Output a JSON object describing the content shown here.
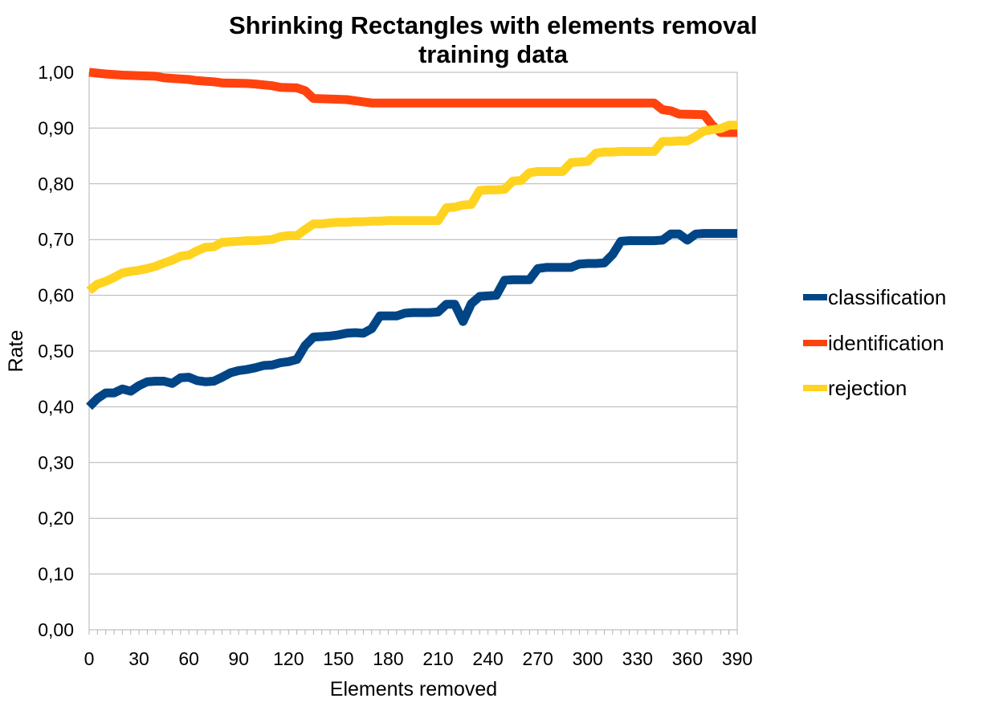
{
  "chart_data": {
    "type": "line",
    "title_lines": [
      "Shrinking Rectangles with elements removal",
      "training data"
    ],
    "xlabel": "Elements removed",
    "ylabel": "Rate",
    "xlim": [
      0,
      390
    ],
    "ylim": [
      0,
      1
    ],
    "x_ticks": [
      "0",
      "30",
      "60",
      "90",
      "120",
      "150",
      "180",
      "210",
      "240",
      "270",
      "300",
      "330",
      "360",
      "390"
    ],
    "y_ticks": [
      "0,00",
      "0,10",
      "0,20",
      "0,30",
      "0,40",
      "0,50",
      "0,60",
      "0,70",
      "0,80",
      "0,90",
      "1,00"
    ],
    "grid": "horizontal",
    "legend_position": "right",
    "series": [
      {
        "name": "classification",
        "color": "#004586",
        "points": [
          [
            0,
            0.4
          ],
          [
            5,
            0.415
          ],
          [
            10,
            0.425
          ],
          [
            15,
            0.425
          ],
          [
            20,
            0.432
          ],
          [
            25,
            0.428
          ],
          [
            30,
            0.438
          ],
          [
            35,
            0.445
          ],
          [
            40,
            0.446
          ],
          [
            45,
            0.446
          ],
          [
            50,
            0.442
          ],
          [
            55,
            0.452
          ],
          [
            60,
            0.453
          ],
          [
            65,
            0.447
          ],
          [
            70,
            0.445
          ],
          [
            75,
            0.446
          ],
          [
            80,
            0.453
          ],
          [
            85,
            0.461
          ],
          [
            90,
            0.465
          ],
          [
            95,
            0.467
          ],
          [
            100,
            0.47
          ],
          [
            105,
            0.474
          ],
          [
            110,
            0.475
          ],
          [
            115,
            0.479
          ],
          [
            120,
            0.481
          ],
          [
            125,
            0.485
          ],
          [
            130,
            0.51
          ],
          [
            135,
            0.525
          ],
          [
            140,
            0.526
          ],
          [
            145,
            0.527
          ],
          [
            150,
            0.529
          ],
          [
            155,
            0.532
          ],
          [
            160,
            0.533
          ],
          [
            165,
            0.532
          ],
          [
            170,
            0.54
          ],
          [
            175,
            0.563
          ],
          [
            180,
            0.563
          ],
          [
            185,
            0.563
          ],
          [
            190,
            0.568
          ],
          [
            195,
            0.569
          ],
          [
            200,
            0.569
          ],
          [
            205,
            0.569
          ],
          [
            210,
            0.57
          ],
          [
            215,
            0.584
          ],
          [
            220,
            0.584
          ],
          [
            225,
            0.553
          ],
          [
            230,
            0.585
          ],
          [
            235,
            0.598
          ],
          [
            240,
            0.599
          ],
          [
            245,
            0.6
          ],
          [
            250,
            0.627
          ],
          [
            255,
            0.628
          ],
          [
            260,
            0.628
          ],
          [
            265,
            0.628
          ],
          [
            270,
            0.648
          ],
          [
            275,
            0.65
          ],
          [
            280,
            0.65
          ],
          [
            285,
            0.65
          ],
          [
            290,
            0.65
          ],
          [
            295,
            0.656
          ],
          [
            300,
            0.657
          ],
          [
            305,
            0.657
          ],
          [
            310,
            0.658
          ],
          [
            315,
            0.673
          ],
          [
            320,
            0.697
          ],
          [
            325,
            0.698
          ],
          [
            330,
            0.698
          ],
          [
            335,
            0.698
          ],
          [
            340,
            0.698
          ],
          [
            345,
            0.699
          ],
          [
            350,
            0.71
          ],
          [
            355,
            0.71
          ],
          [
            360,
            0.699
          ],
          [
            365,
            0.71
          ],
          [
            370,
            0.711
          ],
          [
            375,
            0.711
          ],
          [
            380,
            0.711
          ],
          [
            385,
            0.711
          ],
          [
            390,
            0.711
          ]
        ]
      },
      {
        "name": "identification",
        "color": "#ff420e",
        "points": [
          [
            0,
            1.0
          ],
          [
            10,
            0.997
          ],
          [
            20,
            0.995
          ],
          [
            30,
            0.994
          ],
          [
            40,
            0.993
          ],
          [
            45,
            0.99
          ],
          [
            55,
            0.988
          ],
          [
            60,
            0.987
          ],
          [
            65,
            0.985
          ],
          [
            75,
            0.983
          ],
          [
            80,
            0.981
          ],
          [
            95,
            0.98
          ],
          [
            100,
            0.979
          ],
          [
            110,
            0.976
          ],
          [
            115,
            0.973
          ],
          [
            125,
            0.972
          ],
          [
            130,
            0.967
          ],
          [
            135,
            0.953
          ],
          [
            145,
            0.952
          ],
          [
            155,
            0.951
          ],
          [
            165,
            0.947
          ],
          [
            170,
            0.945
          ],
          [
            240,
            0.945
          ],
          [
            300,
            0.945
          ],
          [
            340,
            0.945
          ],
          [
            345,
            0.933
          ],
          [
            350,
            0.931
          ],
          [
            355,
            0.925
          ],
          [
            370,
            0.924
          ],
          [
            375,
            0.905
          ],
          [
            380,
            0.892
          ],
          [
            390,
            0.892
          ]
        ]
      },
      {
        "name": "rejection",
        "color": "#ffd320",
        "points": [
          [
            0,
            0.608
          ],
          [
            5,
            0.62
          ],
          [
            10,
            0.625
          ],
          [
            15,
            0.632
          ],
          [
            20,
            0.64
          ],
          [
            25,
            0.643
          ],
          [
            30,
            0.645
          ],
          [
            35,
            0.648
          ],
          [
            40,
            0.652
          ],
          [
            45,
            0.658
          ],
          [
            50,
            0.663
          ],
          [
            55,
            0.67
          ],
          [
            60,
            0.672
          ],
          [
            65,
            0.68
          ],
          [
            70,
            0.686
          ],
          [
            75,
            0.687
          ],
          [
            80,
            0.695
          ],
          [
            85,
            0.696
          ],
          [
            90,
            0.697
          ],
          [
            95,
            0.698
          ],
          [
            100,
            0.698
          ],
          [
            105,
            0.699
          ],
          [
            110,
            0.7
          ],
          [
            115,
            0.705
          ],
          [
            120,
            0.707
          ],
          [
            125,
            0.707
          ],
          [
            130,
            0.718
          ],
          [
            135,
            0.728
          ],
          [
            140,
            0.728
          ],
          [
            145,
            0.73
          ],
          [
            150,
            0.731
          ],
          [
            155,
            0.731
          ],
          [
            160,
            0.732
          ],
          [
            165,
            0.732
          ],
          [
            170,
            0.733
          ],
          [
            175,
            0.733
          ],
          [
            180,
            0.734
          ],
          [
            190,
            0.734
          ],
          [
            200,
            0.734
          ],
          [
            210,
            0.734
          ],
          [
            215,
            0.757
          ],
          [
            220,
            0.758
          ],
          [
            225,
            0.762
          ],
          [
            230,
            0.763
          ],
          [
            235,
            0.788
          ],
          [
            240,
            0.789
          ],
          [
            245,
            0.789
          ],
          [
            250,
            0.79
          ],
          [
            255,
            0.805
          ],
          [
            260,
            0.806
          ],
          [
            265,
            0.82
          ],
          [
            270,
            0.822
          ],
          [
            275,
            0.822
          ],
          [
            280,
            0.822
          ],
          [
            285,
            0.822
          ],
          [
            290,
            0.838
          ],
          [
            295,
            0.839
          ],
          [
            300,
            0.84
          ],
          [
            305,
            0.855
          ],
          [
            310,
            0.857
          ],
          [
            315,
            0.857
          ],
          [
            320,
            0.858
          ],
          [
            330,
            0.858
          ],
          [
            340,
            0.858
          ],
          [
            345,
            0.876
          ],
          [
            350,
            0.876
          ],
          [
            355,
            0.877
          ],
          [
            360,
            0.877
          ],
          [
            365,
            0.885
          ],
          [
            370,
            0.895
          ],
          [
            375,
            0.897
          ],
          [
            380,
            0.899
          ],
          [
            385,
            0.905
          ],
          [
            390,
            0.905
          ]
        ]
      }
    ]
  }
}
